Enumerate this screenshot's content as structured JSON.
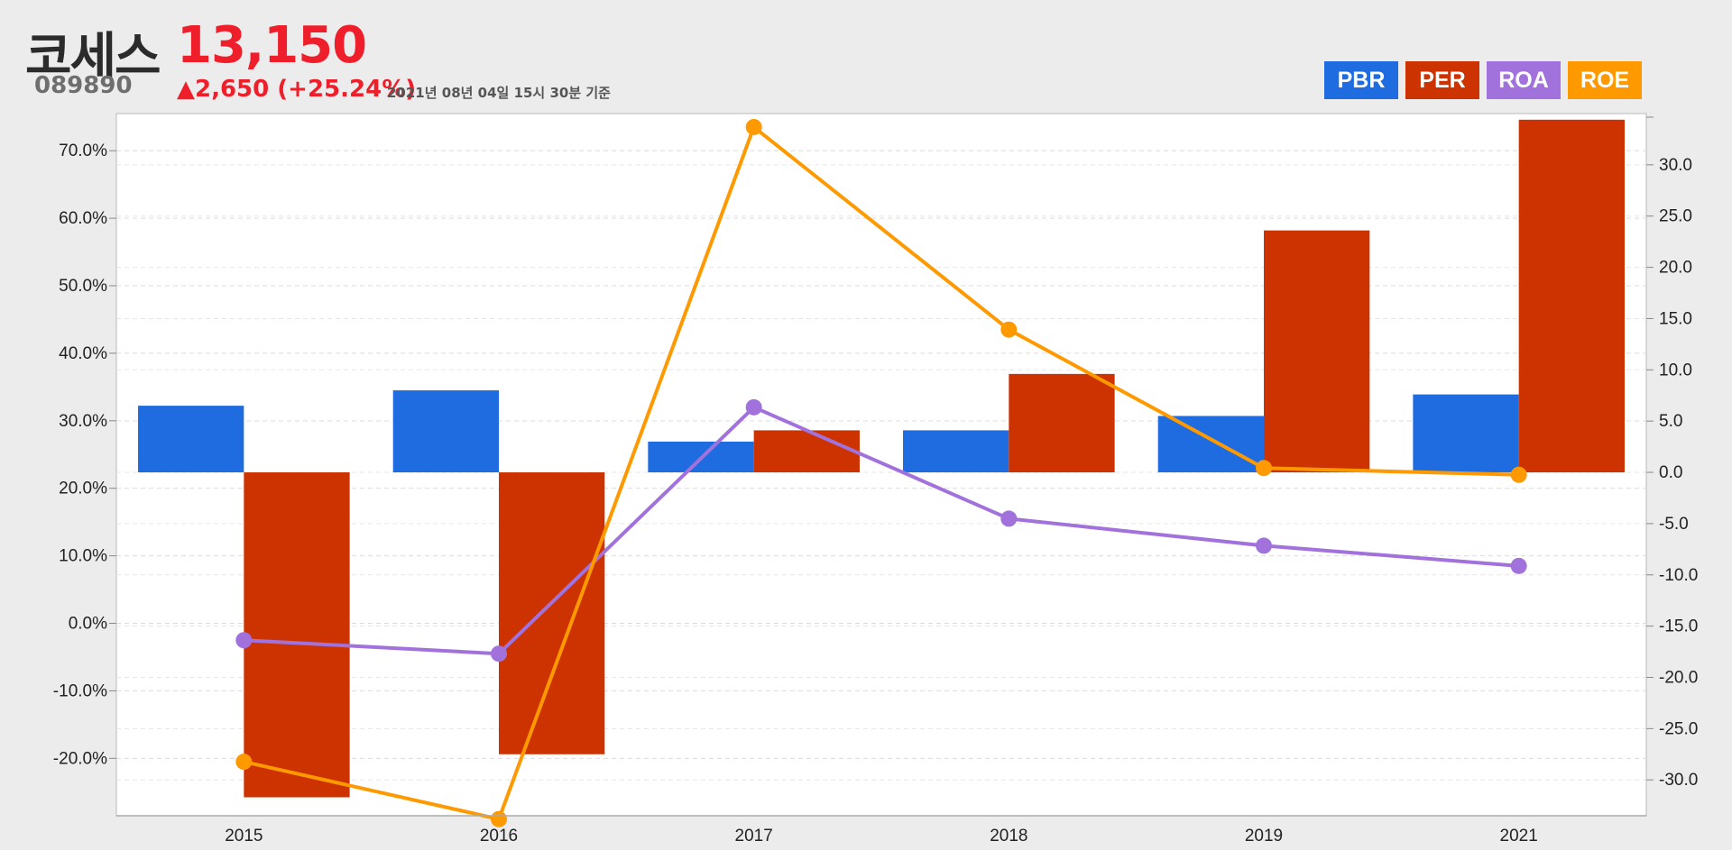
{
  "header": {
    "name": "코세스",
    "price": "13,150",
    "code": "089890",
    "change": "▲2,650 (+25.24%)",
    "timestamp": "2021년 08년 04일 15시 30분 기준"
  },
  "legend": [
    {
      "label": "PBR",
      "color": "#1f6ce0"
    },
    {
      "label": "PER",
      "color": "#cc3300"
    },
    {
      "label": "ROA",
      "color": "#a272dc"
    },
    {
      "label": "ROE",
      "color": "#ff9900"
    }
  ],
  "chart_data": {
    "type": "bar",
    "categories": [
      "2015",
      "2016",
      "2017",
      "2018",
      "2019",
      "2021"
    ],
    "left_axis": {
      "ticks": [
        70,
        60,
        50,
        40,
        30,
        20,
        10,
        0,
        -10,
        -20
      ],
      "tick_labels": [
        "70.0%",
        "60.0%",
        "50.0%",
        "40.0%",
        "30.0%",
        "20.0%",
        "10.0%",
        "0.0%",
        "-10.0%",
        "-20.0%"
      ],
      "range": [
        -28.5,
        75.5
      ]
    },
    "right_axis": {
      "ticks": [
        30,
        25,
        20,
        15,
        10,
        5,
        0,
        -5,
        -10,
        -15,
        -20,
        -25,
        -30
      ],
      "tick_labels": [
        "30.0",
        "25.0",
        "20.0",
        "15.0",
        "10.0",
        "5.0",
        "0.0",
        "-5.0",
        "-10.0",
        "-15.0",
        "-20.0",
        "-25.0",
        "-30.0"
      ],
      "range": [
        -33.5,
        35.0
      ]
    },
    "grid": true,
    "legend_position": "top-right",
    "series": [
      {
        "name": "PBR",
        "kind": "bar",
        "axis": "right",
        "color": "#1f6ce0",
        "values": [
          6.5,
          8.0,
          3.0,
          4.1,
          5.5,
          7.6
        ]
      },
      {
        "name": "PER",
        "kind": "bar",
        "axis": "right",
        "color": "#cc3300",
        "values": [
          -31.7,
          -27.5,
          4.1,
          9.6,
          23.6,
          34.4
        ]
      },
      {
        "name": "ROA",
        "kind": "line",
        "axis": "left",
        "color": "#a272dc",
        "values": [
          -2.5,
          -4.5,
          32.0,
          15.5,
          11.5,
          8.5
        ]
      },
      {
        "name": "ROE",
        "kind": "line",
        "axis": "left",
        "color": "#ff9900",
        "values": [
          -20.5,
          -29.0,
          73.5,
          43.5,
          23.0,
          22.0
        ]
      }
    ]
  }
}
